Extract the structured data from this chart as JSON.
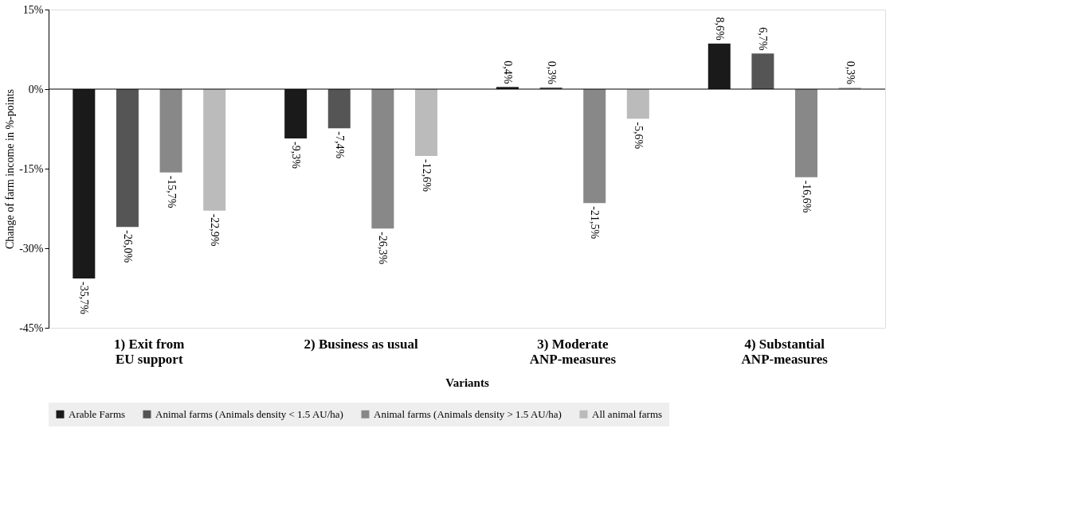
{
  "chart_data": {
    "type": "bar",
    "xlabel": "Variants",
    "ylabel": "Change of farm income in %-points",
    "categories": [
      "1) Exit from EU support",
      "2) Business as usual",
      "3) Moderate ANP-measures",
      "4) Substantial ANP-measures"
    ],
    "series": [
      {
        "name": "Arable Farms",
        "color": "#1a1a1a",
        "values": [
          -35.7,
          -9.3,
          0.4,
          8.6
        ],
        "value_labels": [
          "-35,7%",
          "-9,3%",
          "0,4%",
          "8,6%"
        ]
      },
      {
        "name": "Animal farms (Animals density < 1.5 AU/ha)",
        "color": "#555555",
        "values": [
          -26.0,
          -7.4,
          0.3,
          6.7
        ],
        "value_labels": [
          "-26,0%",
          "-7,4%",
          "0,3%",
          "6,7%"
        ]
      },
      {
        "name": "Animal farms (Animals density > 1.5 AU/ha)",
        "color": "#888888",
        "values": [
          -15.7,
          -26.3,
          -21.5,
          -16.6
        ],
        "value_labels": [
          "-15,7%",
          "-26,3%",
          "-21,5%",
          "-16,6%"
        ]
      },
      {
        "name": "All animal farms",
        "color": "#bbbbbb",
        "values": [
          -22.9,
          -12.6,
          -5.6,
          0.3
        ],
        "value_labels": [
          "-22,9%",
          "-12,6%",
          "-5,6%",
          "0,3%"
        ]
      }
    ],
    "ylim": [
      -45,
      15
    ],
    "yticks": [
      {
        "value": -45,
        "label": "-45%"
      },
      {
        "value": -30,
        "label": "-30%"
      },
      {
        "value": -15,
        "label": "-15%"
      },
      {
        "value": 0,
        "label": "0%"
      },
      {
        "value": 15,
        "label": "15%"
      }
    ],
    "ref_lines": [
      {
        "axis": "y",
        "value": 0
      }
    ],
    "grid": false,
    "legend": "bottom"
  }
}
